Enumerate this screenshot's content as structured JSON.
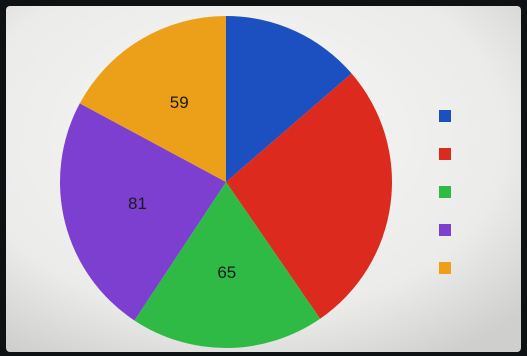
{
  "chart_data": {
    "type": "pie",
    "slices": [
      {
        "value": 47,
        "color": "#1c4fc0",
        "label": ""
      },
      {
        "value": 92,
        "color": "#dc2a1e",
        "label": ""
      },
      {
        "value": 65,
        "color": "#2fba45",
        "label": "65"
      },
      {
        "value": 81,
        "color": "#7c3fcf",
        "label": "81"
      },
      {
        "value": 59,
        "color": "#eca019",
        "label": "59"
      }
    ],
    "legend": {
      "placement": "right",
      "entries": [
        {
          "label": "",
          "color": "#1c4fc0"
        },
        {
          "label": "",
          "color": "#dc2a1e"
        },
        {
          "label": "",
          "color": "#2fba45"
        },
        {
          "label": "",
          "color": "#7c3fcf"
        },
        {
          "label": "",
          "color": "#eca019"
        }
      ]
    }
  }
}
